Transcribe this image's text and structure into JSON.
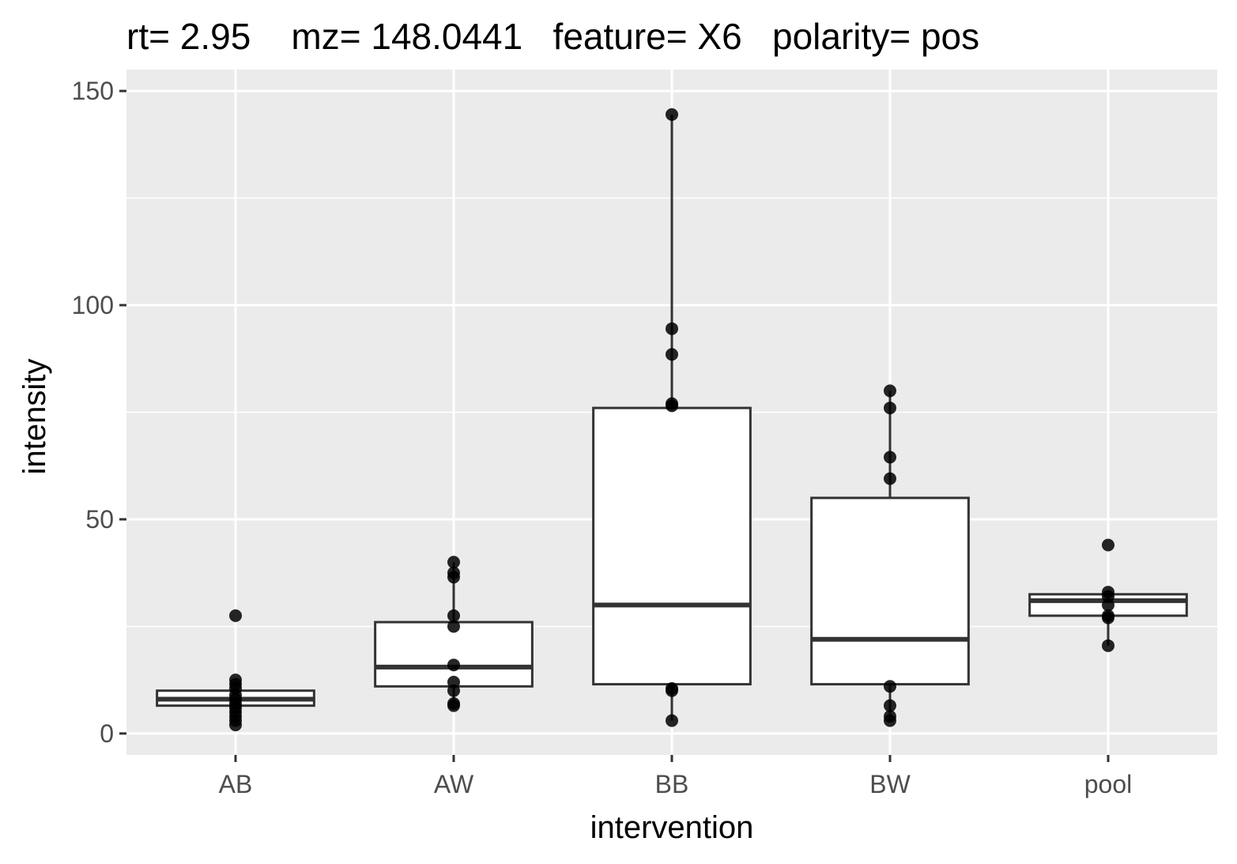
{
  "chart_data": {
    "type": "box",
    "title": "rt= 2.95    mz= 148.0441   feature= X6   polarity= pos",
    "xlabel": "intervention",
    "ylabel": "intensity",
    "categories": [
      "AB",
      "AW",
      "BB",
      "BW",
      "pool"
    ],
    "ylim": [
      -5,
      155
    ],
    "yticks": [
      0,
      50,
      100,
      150
    ],
    "grid": true,
    "legend": "none",
    "colors": {
      "panel": "#ebebeb",
      "grid": "#ffffff",
      "box_fill": "#ffffff",
      "box_line": "#333333",
      "point": "#000000",
      "tick_text": "#4d4d4d"
    },
    "boxes": [
      {
        "category": "AB",
        "whisker_low": 2,
        "q1": 6.5,
        "median": 8,
        "q3": 10,
        "whisker_high": 12
      },
      {
        "category": "AW",
        "whisker_low": 6,
        "q1": 11,
        "median": 15.5,
        "q3": 26,
        "whisker_high": 40
      },
      {
        "category": "BB",
        "whisker_low": 3,
        "q1": 11.5,
        "median": 30,
        "q3": 76,
        "whisker_high": 144.5
      },
      {
        "category": "BW",
        "whisker_low": 3,
        "q1": 11.5,
        "median": 22,
        "q3": 55,
        "whisker_high": 80
      },
      {
        "category": "pool",
        "whisker_low": 20.5,
        "q1": 27.5,
        "median": 31,
        "q3": 32.5,
        "whisker_high": 33
      }
    ],
    "points": [
      {
        "category": "AB",
        "values": [
          27.5,
          12.5,
          11.5,
          10.5,
          9,
          8,
          7,
          6,
          5,
          4,
          3,
          2
        ]
      },
      {
        "category": "AW",
        "values": [
          40,
          37.5,
          36.5,
          27.5,
          25,
          16,
          12,
          10,
          7,
          6.5
        ]
      },
      {
        "category": "BB",
        "values": [
          144.5,
          94.5,
          88.5,
          77,
          76.5,
          10.5,
          10,
          3
        ]
      },
      {
        "category": "BW",
        "values": [
          80,
          76,
          64.5,
          59.5,
          11,
          6.5,
          4,
          3
        ]
      },
      {
        "category": "pool",
        "values": [
          44,
          33,
          32,
          30,
          27.5,
          27,
          20.5
        ]
      }
    ]
  }
}
